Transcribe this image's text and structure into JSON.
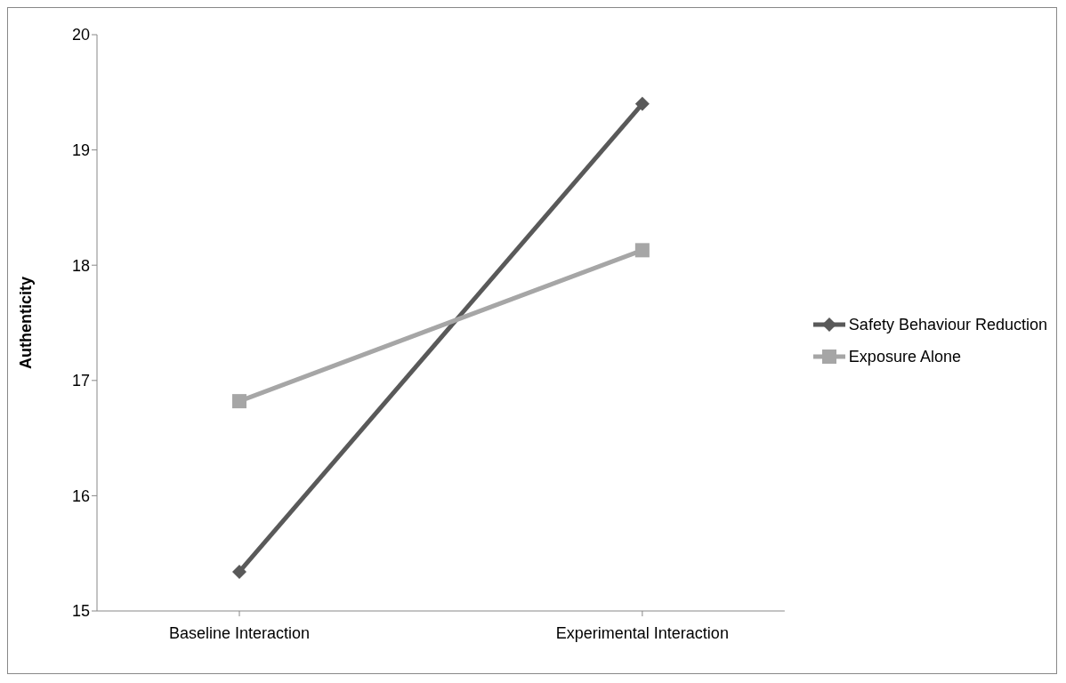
{
  "chart_data": {
    "type": "line",
    "ylabel": "Authenticity",
    "categories": [
      "Baseline Interaction",
      "Experimental Interaction"
    ],
    "series": [
      {
        "name": "Safety Behaviour Reduction",
        "color": "#595959",
        "values": [
          15.34,
          19.4
        ],
        "marker": "diamond"
      },
      {
        "name": "Exposure Alone",
        "color": "#a6a6a6",
        "values": [
          16.82,
          18.13
        ],
        "marker": "square"
      }
    ],
    "ylim": [
      15,
      20
    ],
    "yticks": [
      15,
      16,
      17,
      18,
      19,
      20
    ],
    "legend": "right",
    "line_style": "solid"
  }
}
